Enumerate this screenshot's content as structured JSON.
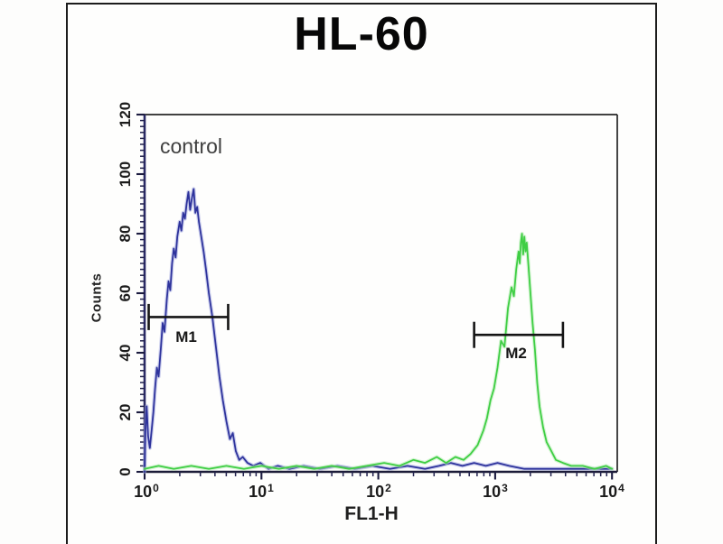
{
  "figure": {
    "title": "HL-60"
  },
  "chart_data": {
    "type": "line",
    "subtype": "flow-cytometry-histogram",
    "title": "HL-60",
    "xlabel": "FL1-H",
    "ylabel": "Counts",
    "x_scale": "log10",
    "xlim": [
      1,
      10000
    ],
    "ylim": [
      0,
      120
    ],
    "grid": false,
    "annotation": "control",
    "y_ticks": [
      0,
      20,
      40,
      60,
      80,
      100,
      120
    ],
    "x_tick_labels": [
      {
        "base": "10",
        "exp": "0"
      },
      {
        "base": "10",
        "exp": "1"
      },
      {
        "base": "10",
        "exp": "2"
      },
      {
        "base": "10",
        "exp": "3"
      },
      {
        "base": "10",
        "exp": "4"
      }
    ],
    "markers": [
      {
        "label": "M1",
        "from_log": 0.035,
        "to_log": 0.715,
        "count": 52
      },
      {
        "label": "M2",
        "from_log": 2.82,
        "to_log": 3.58,
        "count": 46
      }
    ],
    "series": [
      {
        "name": "control-blue",
        "color": "#2e339c",
        "halo": "#a3a8e0",
        "points": [
          [
            0.0,
            0
          ],
          [
            0.008,
            14
          ],
          [
            0.018,
            22
          ],
          [
            0.03,
            12
          ],
          [
            0.045,
            8
          ],
          [
            0.06,
            14
          ],
          [
            0.075,
            20
          ],
          [
            0.09,
            28
          ],
          [
            0.105,
            35
          ],
          [
            0.12,
            32
          ],
          [
            0.14,
            42
          ],
          [
            0.155,
            50
          ],
          [
            0.17,
            47
          ],
          [
            0.19,
            58
          ],
          [
            0.205,
            64
          ],
          [
            0.22,
            61
          ],
          [
            0.235,
            70
          ],
          [
            0.25,
            75
          ],
          [
            0.265,
            72
          ],
          [
            0.28,
            79
          ],
          [
            0.3,
            84
          ],
          [
            0.315,
            81
          ],
          [
            0.33,
            87
          ],
          [
            0.345,
            85
          ],
          [
            0.36,
            90
          ],
          [
            0.375,
            94
          ],
          [
            0.39,
            88
          ],
          [
            0.405,
            92
          ],
          [
            0.42,
            95
          ],
          [
            0.435,
            87
          ],
          [
            0.45,
            89
          ],
          [
            0.465,
            84
          ],
          [
            0.485,
            79
          ],
          [
            0.505,
            74
          ],
          [
            0.525,
            68
          ],
          [
            0.55,
            60
          ],
          [
            0.58,
            52
          ],
          [
            0.61,
            42
          ],
          [
            0.64,
            32
          ],
          [
            0.67,
            24
          ],
          [
            0.7,
            17
          ],
          [
            0.73,
            11
          ],
          [
            0.755,
            13
          ],
          [
            0.78,
            7
          ],
          [
            0.81,
            4
          ],
          [
            0.84,
            5
          ],
          [
            0.88,
            3
          ],
          [
            0.93,
            2
          ],
          [
            0.99,
            3
          ],
          [
            1.06,
            1
          ],
          [
            1.14,
            2
          ],
          [
            1.24,
            1
          ],
          [
            1.36,
            2
          ],
          [
            1.5,
            1
          ],
          [
            1.65,
            2
          ],
          [
            1.8,
            1
          ],
          [
            1.95,
            2
          ],
          [
            2.1,
            1
          ],
          [
            2.25,
            2
          ],
          [
            2.4,
            1
          ],
          [
            2.52,
            2
          ],
          [
            2.62,
            3
          ],
          [
            2.72,
            2
          ],
          [
            2.82,
            3
          ],
          [
            2.92,
            2
          ],
          [
            3.02,
            3
          ],
          [
            3.12,
            2
          ],
          [
            3.25,
            1
          ],
          [
            3.45,
            1
          ],
          [
            3.65,
            1
          ],
          [
            3.85,
            1
          ],
          [
            4.0,
            1
          ]
        ]
      },
      {
        "name": "stained-green",
        "color": "#3fce44",
        "halo": "#b4ecb2",
        "points": [
          [
            0.0,
            1
          ],
          [
            0.12,
            2
          ],
          [
            0.25,
            1
          ],
          [
            0.4,
            2
          ],
          [
            0.55,
            1
          ],
          [
            0.7,
            2
          ],
          [
            0.85,
            1
          ],
          [
            1.0,
            2
          ],
          [
            1.15,
            1
          ],
          [
            1.3,
            2
          ],
          [
            1.45,
            1
          ],
          [
            1.6,
            2
          ],
          [
            1.75,
            1
          ],
          [
            1.9,
            2
          ],
          [
            2.05,
            3
          ],
          [
            2.18,
            2
          ],
          [
            2.3,
            4
          ],
          [
            2.4,
            3
          ],
          [
            2.5,
            5
          ],
          [
            2.58,
            3
          ],
          [
            2.66,
            5
          ],
          [
            2.73,
            4
          ],
          [
            2.79,
            6
          ],
          [
            2.85,
            9
          ],
          [
            2.9,
            14
          ],
          [
            2.93,
            18
          ],
          [
            2.96,
            24
          ],
          [
            2.99,
            28
          ],
          [
            3.02,
            35
          ],
          [
            3.05,
            44
          ],
          [
            3.08,
            42
          ],
          [
            3.11,
            55
          ],
          [
            3.14,
            62
          ],
          [
            3.16,
            59
          ],
          [
            3.18,
            68
          ],
          [
            3.2,
            74
          ],
          [
            3.21,
            70
          ],
          [
            3.22,
            77
          ],
          [
            3.23,
            80
          ],
          [
            3.24,
            73
          ],
          [
            3.25,
            79
          ],
          [
            3.26,
            74
          ],
          [
            3.27,
            77
          ],
          [
            3.285,
            69
          ],
          [
            3.3,
            61
          ],
          [
            3.32,
            50
          ],
          [
            3.34,
            41
          ],
          [
            3.36,
            30
          ],
          [
            3.38,
            22
          ],
          [
            3.41,
            15
          ],
          [
            3.44,
            10
          ],
          [
            3.48,
            7
          ],
          [
            3.52,
            4
          ],
          [
            3.58,
            3
          ],
          [
            3.65,
            2
          ],
          [
            3.75,
            2
          ],
          [
            3.85,
            1
          ],
          [
            3.95,
            2
          ],
          [
            4.0,
            1
          ]
        ]
      }
    ]
  }
}
